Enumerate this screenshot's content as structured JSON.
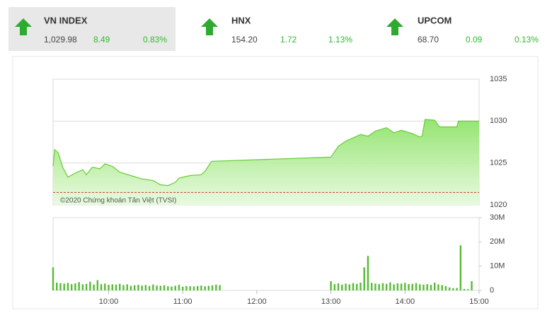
{
  "indices": [
    {
      "name": "VN INDEX",
      "price": "1,029.98",
      "change": "8.49",
      "pct": "0.83%"
    },
    {
      "name": "HNX",
      "price": "154.20",
      "change": "1.72",
      "pct": "1.13%"
    },
    {
      "name": "UPCOM",
      "price": "68.70",
      "change": "0.09",
      "pct": "0.13%"
    }
  ],
  "chart_data": [
    {
      "type": "area",
      "annotation": "©2020 Chứng khoán Tân Việt (TVSI)",
      "color": "#66cc33",
      "x": [
        9.25,
        9.27,
        9.32,
        9.38,
        9.45,
        9.55,
        9.65,
        9.7,
        9.78,
        9.88,
        9.95,
        10.05,
        10.15,
        10.3,
        10.45,
        10.6,
        10.7,
        10.8,
        10.9,
        10.95,
        11.1,
        11.25,
        11.3,
        11.39,
        13.0,
        13.1,
        13.2,
        13.3,
        13.4,
        13.5,
        13.6,
        13.75,
        13.85,
        13.95,
        14.1,
        14.2,
        14.23,
        14.27,
        14.4,
        14.45,
        14.47,
        14.7,
        14.72,
        15.0
      ],
      "values": [
        1024.6,
        1026.6,
        1026.2,
        1024.5,
        1023.3,
        1023.8,
        1024.2,
        1023.6,
        1024.5,
        1024.3,
        1024.9,
        1024.6,
        1023.9,
        1023.5,
        1023.1,
        1022.9,
        1022.4,
        1022.3,
        1022.7,
        1023.2,
        1023.5,
        1023.6,
        1024.0,
        1025.2,
        1025.7,
        1027.0,
        1027.6,
        1028.0,
        1028.4,
        1028.2,
        1028.8,
        1029.2,
        1028.6,
        1028.9,
        1028.5,
        1028.1,
        1028.2,
        1030.2,
        1030.1,
        1029.5,
        1029.3,
        1029.3,
        1030.0,
        1030.0
      ],
      "reference_line": 1021.49,
      "reference_color": "#cc3333",
      "xlim": [
        9.25,
        15
      ],
      "ylim": [
        1020,
        1035
      ],
      "yticks": [
        1020,
        1025,
        1030,
        1035
      ],
      "grid": true
    },
    {
      "type": "bar",
      "color": "#55bb33",
      "x": [
        9.25,
        9.3,
        9.35,
        9.4,
        9.45,
        9.5,
        9.55,
        9.6,
        9.65,
        9.7,
        9.75,
        9.8,
        9.85,
        9.9,
        9.95,
        10.0,
        10.05,
        10.1,
        10.15,
        10.2,
        10.25,
        10.3,
        10.35,
        10.4,
        10.45,
        10.5,
        10.55,
        10.6,
        10.65,
        10.7,
        10.75,
        10.8,
        10.85,
        10.9,
        10.95,
        11.0,
        11.05,
        11.1,
        11.15,
        11.2,
        11.25,
        11.3,
        11.35,
        11.4,
        11.45,
        11.5,
        13.0,
        13.05,
        13.1,
        13.15,
        13.2,
        13.25,
        13.3,
        13.35,
        13.4,
        13.45,
        13.5,
        13.55,
        13.6,
        13.65,
        13.7,
        13.75,
        13.8,
        13.85,
        13.9,
        13.95,
        14.0,
        14.05,
        14.1,
        14.15,
        14.2,
        14.25,
        14.3,
        14.35,
        14.4,
        14.45,
        14.5,
        14.55,
        14.6,
        14.65,
        14.7,
        14.75,
        14.8,
        14.85,
        14.9
      ],
      "values": [
        9.5,
        3.2,
        3.0,
        2.8,
        3.1,
        2.6,
        2.9,
        3.4,
        2.5,
        2.7,
        3.6,
        2.4,
        4.2,
        2.6,
        2.8,
        2.3,
        2.5,
        2.4,
        2.7,
        2.2,
        2.5,
        1.9,
        2.1,
        2.3,
        2.0,
        2.2,
        1.8,
        2.4,
        2.0,
        1.9,
        2.1,
        1.7,
        1.6,
        1.9,
        2.3,
        1.5,
        1.8,
        1.7,
        1.6,
        1.8,
        2.0,
        1.7,
        1.9,
        2.1,
        2.4,
        2.2,
        3.8,
        2.6,
        2.9,
        2.4,
        2.8,
        2.5,
        3.0,
        2.7,
        3.2,
        9.5,
        14.2,
        3.1,
        2.8,
        2.6,
        3.0,
        2.7,
        3.3,
        2.5,
        2.9,
        2.8,
        3.1,
        2.6,
        2.7,
        3.0,
        2.5,
        2.4,
        2.6,
        2.3,
        3.2,
        2.5,
        2.2,
        1.8,
        1.2,
        0.9,
        1.0,
        18.6,
        0.6,
        0.5,
        3.8
      ],
      "xlim": [
        9.25,
        15
      ],
      "ylim": [
        0,
        30
      ],
      "yticks": [
        0,
        {
          "value": 10,
          "label": "10M"
        },
        {
          "value": 20,
          "label": "20M"
        },
        {
          "value": 30,
          "label": "30M"
        }
      ],
      "xticks": [
        {
          "value": 10,
          "label": "10:00"
        },
        {
          "value": 11,
          "label": "11:00"
        },
        {
          "value": 12,
          "label": "12:00"
        },
        {
          "value": 13,
          "label": "13:00"
        },
        {
          "value": 14,
          "label": "14:00"
        },
        {
          "value": 15,
          "label": "15:00"
        }
      ]
    }
  ]
}
